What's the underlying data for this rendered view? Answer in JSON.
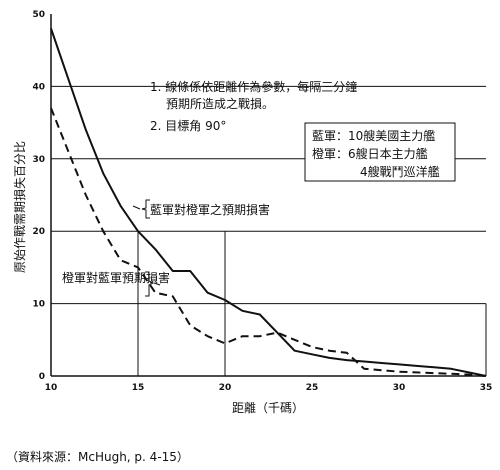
{
  "chart_data": {
    "type": "line",
    "xlabel": "距離（千碼）",
    "ylabel": "原始作戰需期損失百分比",
    "xlim": [
      10,
      35
    ],
    "ylim": [
      0,
      50
    ],
    "xticks": [
      10,
      15,
      20,
      25,
      30,
      35
    ],
    "yticks": [
      0,
      10,
      20,
      30,
      40,
      50
    ],
    "grid": "partial",
    "series": [
      {
        "name": "藍軍對橙軍之預期損害",
        "style": "solid",
        "x": [
          10,
          11,
          12,
          13,
          14,
          15,
          16,
          17,
          18,
          19,
          20,
          21,
          22,
          23,
          24,
          25,
          26,
          27,
          28,
          29,
          30,
          31,
          32,
          33,
          34,
          35
        ],
        "values": [
          48,
          41,
          34,
          28,
          23.5,
          20,
          17.5,
          14.5,
          14.5,
          11.5,
          10.5,
          9,
          8.5,
          6,
          3.5,
          3,
          2.5,
          2.2,
          2,
          1.8,
          1.6,
          1.4,
          1.2,
          1,
          0.5,
          0
        ]
      },
      {
        "name": "橙軍對藍軍預期損害",
        "style": "dashed",
        "x": [
          10,
          11,
          12,
          13,
          14,
          15,
          16,
          17,
          18,
          19,
          20,
          21,
          22,
          23,
          24,
          25,
          26,
          27,
          28,
          29,
          30,
          31,
          32,
          33,
          34,
          35
        ],
        "values": [
          37,
          31,
          25,
          20,
          16,
          15,
          11.5,
          11,
          7,
          5.5,
          4.5,
          5.5,
          5.5,
          6,
          5,
          4,
          3.5,
          3.2,
          1,
          0.8,
          0.6,
          0.5,
          0.4,
          0.3,
          0.2,
          0
        ]
      }
    ],
    "notes": [
      "1. 線條係依距離作為參數，每隔三分鐘",
      "預期所造成之戰損。",
      "2. 目標角 90°"
    ],
    "legend_box": [
      "藍軍：10艘美國主力艦",
      "橙軍：6艘日本主力艦",
      "4艘戰鬥巡洋艦"
    ]
  },
  "source": "（資料來源：McHugh, p. 4-15）"
}
